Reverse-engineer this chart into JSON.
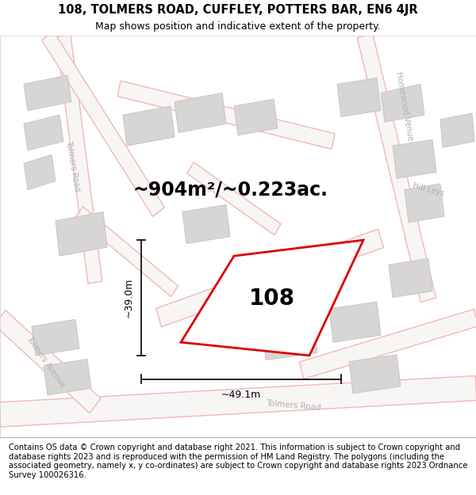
{
  "title_line1": "108, TOLMERS ROAD, CUFFLEY, POTTERS BAR, EN6 4JR",
  "title_line2": "Map shows position and indicative extent of the property.",
  "area_label": "~904m²/~0.223ac.",
  "property_number": "108",
  "width_label": "~49.1m",
  "height_label": "~39.0m",
  "footer": "Contains OS data © Crown copyright and database right 2021. This information is subject to Crown copyright and database rights 2023 and is reproduced with the permission of HM Land Registry. The polygons (including the associated geometry, namely x, y co-ordinates) are subject to Crown copyright and database rights 2023 Ordnance Survey 100026316.",
  "bg_color": "#f0eeec",
  "property_fill": "#ffffff",
  "property_edge": "#dd0000",
  "road_color": "#f0b8b8",
  "building_color": "#d8d6d4",
  "building_edge": "#c8c6c4",
  "dim_color": "#111111",
  "road_label_color": "#b0b0b0",
  "title_fontsize": 10.5,
  "subtitle_fontsize": 9,
  "area_fontsize": 17,
  "property_num_fontsize": 20,
  "dim_fontsize": 9,
  "footer_fontsize": 7.2
}
